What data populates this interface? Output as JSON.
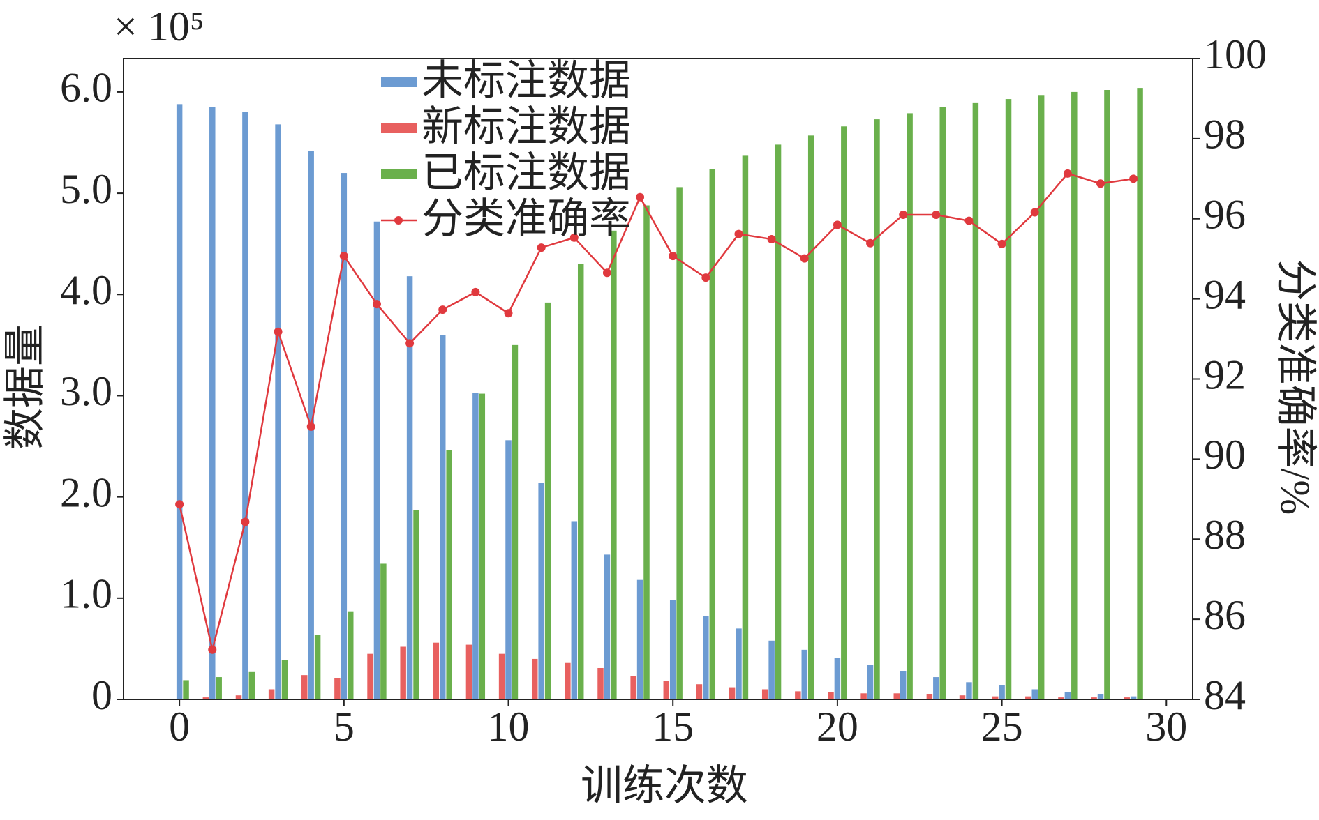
{
  "chart_data": {
    "type": "bar",
    "xlabel": "训练次数",
    "ylabel": "数据量",
    "y2label": "分类准确率/%",
    "y_offset_label": "× 10⁵",
    "x": [
      0,
      1,
      2,
      3,
      4,
      5,
      6,
      7,
      8,
      9,
      10,
      11,
      12,
      13,
      14,
      15,
      16,
      17,
      18,
      19,
      20,
      21,
      22,
      23,
      24,
      25,
      26,
      27,
      28,
      29
    ],
    "xlim": [
      -1.7,
      30.8
    ],
    "xticks": [
      0,
      5,
      10,
      15,
      20,
      25,
      30
    ],
    "ylim": [
      0,
      6.33
    ],
    "yticks": [
      0,
      {
        "value": 1,
        "label": "1.0"
      },
      {
        "value": 2,
        "label": "2.0"
      },
      {
        "value": 3,
        "label": "3.0"
      },
      {
        "value": 4,
        "label": "4.0"
      },
      {
        "value": 5,
        "label": "5.0"
      },
      {
        "value": 6,
        "label": "6.0"
      }
    ],
    "y2lim": [
      84,
      100
    ],
    "y2ticks": [
      84,
      86,
      88,
      90,
      92,
      94,
      96,
      98,
      100
    ],
    "legend": "upper center",
    "series": [
      {
        "name": "未标注数据",
        "type": "bar",
        "color": "#6c9bd2",
        "values": [
          5.88,
          5.85,
          5.8,
          5.68,
          5.42,
          5.2,
          4.72,
          4.18,
          3.6,
          3.03,
          2.56,
          2.14,
          1.76,
          1.43,
          1.18,
          0.98,
          0.82,
          0.7,
          0.58,
          0.49,
          0.41,
          0.34,
          0.28,
          0.22,
          0.17,
          0.14,
          0.1,
          0.07,
          0.05,
          0.03
        ]
      },
      {
        "name": "新标注数据",
        "type": "bar",
        "color": "#e8605f",
        "values": [
          0.005,
          0.02,
          0.04,
          0.1,
          0.24,
          0.21,
          0.45,
          0.52,
          0.56,
          0.54,
          0.45,
          0.4,
          0.36,
          0.31,
          0.23,
          0.18,
          0.15,
          0.12,
          0.1,
          0.08,
          0.07,
          0.06,
          0.06,
          0.05,
          0.04,
          0.03,
          0.03,
          0.02,
          0.02,
          0.02
        ]
      },
      {
        "name": "已标注数据",
        "type": "bar",
        "color": "#6ab04c",
        "values": [
          0.19,
          0.22,
          0.27,
          0.39,
          0.64,
          0.87,
          1.34,
          1.87,
          2.46,
          3.02,
          3.5,
          3.92,
          4.3,
          4.63,
          4.88,
          5.06,
          5.24,
          5.37,
          5.48,
          5.57,
          5.66,
          5.73,
          5.79,
          5.85,
          5.89,
          5.93,
          5.97,
          6.0,
          6.02,
          6.04
        ]
      },
      {
        "name": "分类准确率",
        "type": "line",
        "axis": "y2",
        "color": "#e0393e",
        "values": [
          88.87,
          85.24,
          88.43,
          93.18,
          90.81,
          95.07,
          93.87,
          92.89,
          93.73,
          94.17,
          93.64,
          95.28,
          95.53,
          94.65,
          96.54,
          95.07,
          94.53,
          95.62,
          95.49,
          95.01,
          95.85,
          95.39,
          96.1,
          96.1,
          95.95,
          95.37,
          96.16,
          97.13,
          96.88,
          97.0
        ]
      }
    ]
  }
}
